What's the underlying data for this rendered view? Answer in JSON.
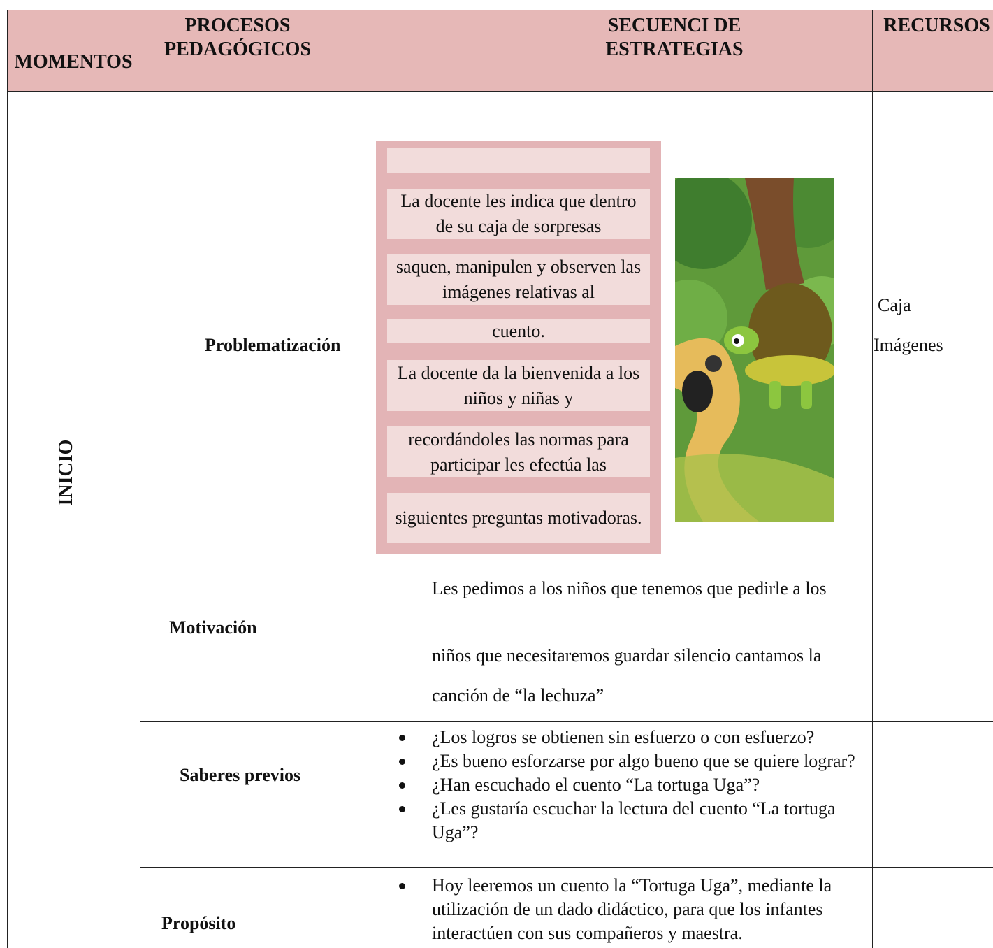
{
  "table": {
    "headers": [
      "MOMENTOS",
      "PROCESOS\nPEDAGÓGICOS",
      "SECUENCI DE\nESTRATEGIAS",
      "RECURSOS"
    ],
    "moment": "INICIO",
    "rows": [
      {
        "process": "Problematización",
        "boxes": [
          "La docente les indica que dentro de su caja de sorpresas",
          "saquen, manipulen y observen las imágenes relativas al",
          "cuento.",
          "La docente da la bienvenida a los niños y niñas y",
          "recordándoles las normas para participar les efectúa las",
          "siguientes preguntas motivadoras."
        ],
        "resources": [
          "Caja",
          "Imágenes"
        ]
      },
      {
        "process": "Motivación",
        "lines": [
          "Les pedimos a los niños que tenemos que pedirle a los",
          "niños que necesitaremos guardar silencio cantamos la",
          "canción de “la lechuza”"
        ]
      },
      {
        "process": "Saberes previos",
        "bullets": [
          "¿Los logros se obtienen sin esfuerzo o con esfuerzo?",
          "¿Es bueno esforzarse por algo bueno que se quiere lograr?",
          "¿Han escuchado el cuento “La tortuga Uga”?",
          "¿Les gustaría escuchar la lectura del cuento “La tortuga Uga”?"
        ]
      },
      {
        "process": "Propósito",
        "bullets": [
          "Hoy leeremos un cuento la “Tortuga Uga”, mediante la utilización de un dado didáctico, para que los infantes interactúen con sus compañeros y maestra."
        ]
      }
    ]
  }
}
